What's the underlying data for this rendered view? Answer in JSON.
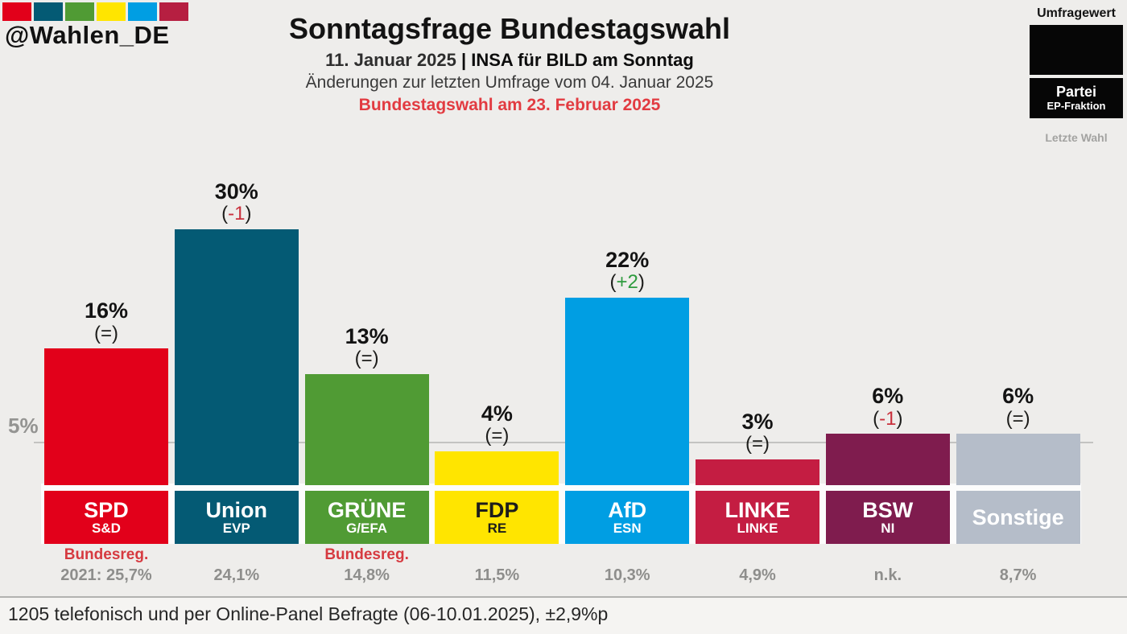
{
  "header": {
    "account": "@Wahlen_DE",
    "logo_colors": [
      "#e2001a",
      "#045a74",
      "#509b34",
      "#ffe500",
      "#009ee3",
      "#b61f41"
    ],
    "title": "Sonntagsfrage Bundestagswahl",
    "survey_date": "11. Januar 2025",
    "pollster": "| INSA für BILD am Sonntag",
    "change_note": "Änderungen zur letzten Umfrage vom 04. Januar 2025",
    "election_note": "Bundestagswahl am 23. Februar 2025"
  },
  "legend": {
    "poll_value_label": "Umfragewert",
    "party_label": "Partei",
    "ep_group_label": "EP-Fraktion",
    "last_election_label": "Letzte Wahl"
  },
  "axis": {
    "threshold_label": "5%"
  },
  "change_format": {
    "open": "(",
    "close": ")"
  },
  "change_colors": {
    "up": "#2e9b3e",
    "down": "#c9303c",
    "equal": "#1d1d1b"
  },
  "chart_data": {
    "type": "bar",
    "title": "Sonntagsfrage Bundestagswahl",
    "subtitle": "11. Januar 2025 | INSA für BILD am Sonntag",
    "categories": [
      "SPD",
      "Union",
      "GRÜNE",
      "FDP",
      "AfD",
      "LINKE",
      "BSW",
      "Sonstige"
    ],
    "values": [
      16,
      30,
      13,
      4,
      22,
      3,
      6,
      6
    ],
    "changes": [
      "=",
      "-1",
      "=",
      "=",
      "+2",
      "=",
      "-1",
      "="
    ],
    "ep_groups": [
      "S&D",
      "EVP",
      "G/EFA",
      "RE",
      "ESN",
      "LINKE",
      "NI",
      ""
    ],
    "last_election": [
      "2021: 25,7%",
      "24,1%",
      "14,8%",
      "11,5%",
      "10,3%",
      "4,9%",
      "n.k.",
      "8,7%"
    ],
    "notes": [
      "Bundesreg.",
      "",
      "Bundesreg.",
      "",
      "",
      "",
      "",
      ""
    ],
    "colors": [
      "#e2001a",
      "#045a74",
      "#509b34",
      "#ffe500",
      "#009ee3",
      "#c41d42",
      "#7f1c4e",
      "#b5bdc9"
    ],
    "ylabel": "",
    "xlabel": "",
    "ylim": [
      0,
      32
    ],
    "threshold_line": 5,
    "grid": false,
    "legend_position": "top-right"
  },
  "parties": [
    {
      "name": "SPD",
      "ep_group": "S&D",
      "value": 16,
      "value_label": "16%",
      "change": "=",
      "change_dir": "equal",
      "color": "#e2001a",
      "name_color": "#ffffff",
      "note": "Bundesreg.",
      "last_election": "2021: 25,7%"
    },
    {
      "name": "Union",
      "ep_group": "EVP",
      "value": 30,
      "value_label": "30%",
      "change": "-1",
      "change_dir": "down",
      "color": "#045a74",
      "name_color": "#ffffff",
      "note": "",
      "last_election": "24,1%"
    },
    {
      "name": "GRÜNE",
      "ep_group": "G/EFA",
      "value": 13,
      "value_label": "13%",
      "change": "=",
      "change_dir": "equal",
      "color": "#509b34",
      "name_color": "#ffffff",
      "note": "Bundesreg.",
      "last_election": "14,8%"
    },
    {
      "name": "FDP",
      "ep_group": "RE",
      "value": 4,
      "value_label": "4%",
      "change": "=",
      "change_dir": "equal",
      "color": "#ffe500",
      "name_color": "#1d1d1b",
      "note": "",
      "last_election": "11,5%"
    },
    {
      "name": "AfD",
      "ep_group": "ESN",
      "value": 22,
      "value_label": "22%",
      "change": "+2",
      "change_dir": "up",
      "color": "#009ee3",
      "name_color": "#ffffff",
      "note": "",
      "last_election": "10,3%"
    },
    {
      "name": "LINKE",
      "ep_group": "LINKE",
      "value": 3,
      "value_label": "3%",
      "change": "=",
      "change_dir": "equal",
      "color": "#c41d42",
      "name_color": "#ffffff",
      "note": "",
      "last_election": "4,9%"
    },
    {
      "name": "BSW",
      "ep_group": "NI",
      "value": 6,
      "value_label": "6%",
      "change": "-1",
      "change_dir": "down",
      "color": "#7f1c4e",
      "name_color": "#ffffff",
      "note": "",
      "last_election": "n.k."
    },
    {
      "name": "Sonstige",
      "ep_group": "",
      "value": 6,
      "value_label": "6%",
      "change": "=",
      "change_dir": "equal",
      "color": "#b5bdc9",
      "name_color": "#ffffff",
      "note": "",
      "last_election": "8,7%"
    }
  ],
  "footer": {
    "methodology": "1205 telefonisch und per Online-Panel Befragte (06-10.01.2025), ±2,9%p"
  }
}
